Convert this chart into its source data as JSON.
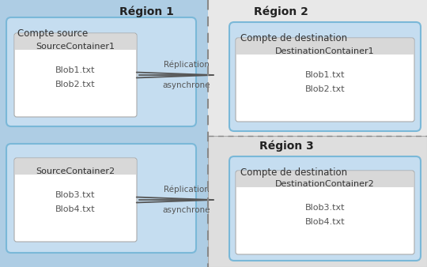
{
  "bg_color": "#e8e8e8",
  "region1_label": "Région 1",
  "region2_label": "Région 2",
  "region3_label": "Région 3",
  "source_account_label": "Compte source",
  "dest_account_label": "Compte de destination",
  "source_container1": "SourceContainer1",
  "source_container2": "SourceContainer2",
  "dest_container1": "DestinationContainer1",
  "dest_container2": "DestinationContainer2",
  "source_blobs1": [
    "Blob1.txt",
    "Blob2.txt"
  ],
  "source_blobs2": [
    "Blob3.txt",
    "Blob4.txt"
  ],
  "dest_blobs1": [
    "Blob1.txt",
    "Blob2.txt"
  ],
  "dest_blobs2": [
    "Blob3.txt",
    "Blob4.txt"
  ],
  "replication_line1": "Réplication",
  "replication_line2": "asynchrone",
  "region1_bg": "#aecde4",
  "region23_bg": "#e8e8e8",
  "account_bg": "#c5ddf0",
  "account_border": "#7ab8d8",
  "container_bg": "#f0f0f0",
  "container_border": "#aaaaaa",
  "container_header_bg": "#d8d8d8",
  "text_dark": "#333333",
  "text_medium": "#555555",
  "arrow_color": "#555555",
  "dash_color": "#888888"
}
